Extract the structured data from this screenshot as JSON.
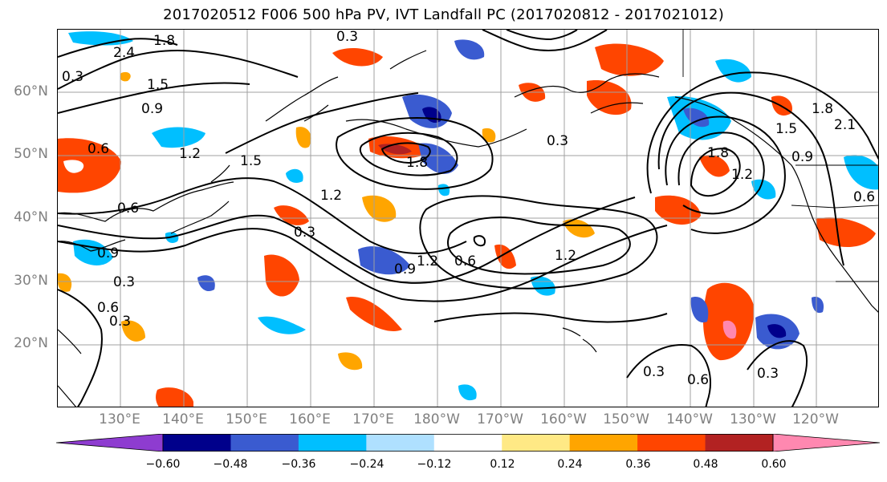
{
  "title": "2017020512 F006 500 hPa PV, IVT Landfall PC (2017020812 - 2017021012)",
  "lat_labels": [
    "60°N",
    "50°N",
    "40°N",
    "30°N",
    "20°N"
  ],
  "lon_labels": [
    "130°E",
    "140°E",
    "150°E",
    "160°E",
    "170°E",
    "180°W",
    "170°W",
    "160°W",
    "150°W",
    "140°W",
    "130°W",
    "120°W"
  ],
  "contour_labels": [
    "2.4",
    "1.8",
    "0.3",
    "0.9",
    "1.5",
    "0.6",
    "1.2",
    "1.5",
    "1.8",
    "1.2",
    "0.3",
    "1.2",
    "0.6",
    "1.2",
    "0.9",
    "0.3",
    "0.6",
    "0.3",
    "0.9",
    "0.6",
    "0.3",
    "1.8",
    "2.1",
    "1.5",
    "0.9",
    "0.6",
    "1.8",
    "1.2",
    "0.3",
    "0.3",
    "0.6",
    "0.3"
  ],
  "colorbar": {
    "colors": [
      "#8e3cd0",
      "#00008b",
      "#3a5bd0",
      "#00bfff",
      "#afe0ff",
      "#ffffff",
      "#ffe985",
      "#ffa500",
      "#ff4500",
      "#b22222",
      "#ff88b0"
    ],
    "ticks": [
      "−0.60",
      "−0.48",
      "−0.36",
      "−0.24",
      "−0.12",
      "0.12",
      "0.24",
      "0.36",
      "0.48",
      "0.60"
    ]
  }
}
